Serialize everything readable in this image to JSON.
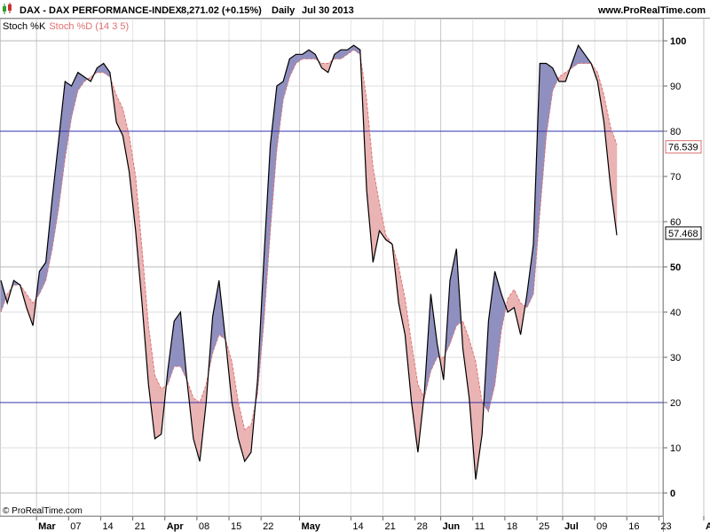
{
  "header": {
    "symbol": "DAX - DAX PERFORMANCE-INDEX",
    "price": "8,271.02 (+0.15%)",
    "period": "Daily",
    "date": "Jul 30 2013",
    "site": "www.ProRealTime.com"
  },
  "indicator": {
    "k_label": "Stoch %K",
    "d_label": "Stoch %D (14 3 5)",
    "k_color": "#000000",
    "d_color": "#e07070",
    "up_fill": "#9090c0",
    "down_fill": "#eab4b4"
  },
  "footer": {
    "copyright": "© ProRealTime.com"
  },
  "chart_data": {
    "type": "line",
    "yticks": [
      {
        "v": 0,
        "label": "0",
        "bold": true
      },
      {
        "v": 10,
        "label": "10",
        "bold": false
      },
      {
        "v": 20,
        "label": "20",
        "bold": false
      },
      {
        "v": 30,
        "label": "30",
        "bold": false
      },
      {
        "v": 40,
        "label": "40",
        "bold": false
      },
      {
        "v": 50,
        "label": "50",
        "bold": true
      },
      {
        "v": 60,
        "label": "60",
        "bold": false
      },
      {
        "v": 70,
        "label": "70",
        "bold": false
      },
      {
        "v": 80,
        "label": "80",
        "bold": false
      },
      {
        "v": 90,
        "label": "90",
        "bold": false
      },
      {
        "v": 100,
        "label": "100",
        "bold": true
      }
    ],
    "ylim": [
      0,
      100
    ],
    "levels": [
      20,
      80
    ],
    "level_color": "#3030b0",
    "last_k": "57.468",
    "last_d": "76.539",
    "x_labels": [
      {
        "i": 5,
        "label": "Mar",
        "month": true
      },
      {
        "i": 10,
        "label": "07",
        "month": false
      },
      {
        "i": 15,
        "label": "14",
        "month": false
      },
      {
        "i": 20,
        "label": "21",
        "month": false
      },
      {
        "i": 25,
        "label": "Apr",
        "month": true
      },
      {
        "i": 30,
        "label": "08",
        "month": false
      },
      {
        "i": 35,
        "label": "15",
        "month": false
      },
      {
        "i": 40,
        "label": "22",
        "month": false
      },
      {
        "i": 46,
        "label": "May",
        "month": true
      },
      {
        "i": 54,
        "label": "14",
        "month": false
      },
      {
        "i": 59,
        "label": "21",
        "month": false
      },
      {
        "i": 64,
        "label": "28",
        "month": false
      },
      {
        "i": 68,
        "label": "Jun",
        "month": true
      },
      {
        "i": 73,
        "label": "11",
        "month": false
      },
      {
        "i": 78,
        "label": "18",
        "month": false
      },
      {
        "i": 83,
        "label": "25",
        "month": false
      },
      {
        "i": 87,
        "label": "Jul",
        "month": true
      },
      {
        "i": 92,
        "label": "09",
        "month": false
      },
      {
        "i": 97,
        "label": "16",
        "month": false
      },
      {
        "i": 102,
        "label": "23",
        "month": false
      },
      {
        "i": 109,
        "label": "Aug",
        "month": true
      }
    ],
    "k": [
      47,
      42,
      47,
      46,
      41,
      37,
      49,
      51,
      65,
      78,
      91,
      90,
      93,
      92,
      91,
      94,
      95,
      93,
      82,
      79,
      71,
      58,
      42,
      24,
      12,
      13,
      27,
      38,
      40,
      25,
      12,
      7,
      20,
      39,
      47,
      34,
      20,
      12,
      7,
      9,
      25,
      52,
      77,
      90,
      91,
      96,
      97,
      97,
      98,
      97,
      94,
      93,
      97,
      98,
      98,
      99,
      98,
      67,
      51,
      58,
      56,
      55,
      42,
      35,
      20,
      9,
      22,
      44,
      33,
      25,
      47,
      54,
      32,
      21,
      3,
      13,
      38,
      49,
      44,
      40,
      41,
      35,
      44,
      55,
      95,
      95,
      94,
      91,
      91,
      95,
      99,
      97,
      95,
      91,
      82,
      68,
      57
    ],
    "d": [
      40,
      44,
      46,
      46,
      44,
      42,
      44,
      47,
      54,
      63,
      74,
      83,
      89,
      91,
      92,
      93,
      93,
      92,
      88,
      85,
      79,
      70,
      54,
      37,
      26,
      23,
      24,
      28,
      28,
      25,
      21,
      20,
      24,
      31,
      35,
      34,
      29,
      20,
      14,
      15,
      22,
      38,
      58,
      76,
      87,
      92,
      95,
      96,
      96,
      96,
      95,
      95,
      96,
      96,
      97,
      98,
      97,
      87,
      72,
      64,
      57,
      55,
      50,
      43,
      33,
      24,
      21,
      27,
      30,
      30,
      33,
      37,
      38,
      34,
      29,
      20,
      18,
      24,
      36,
      43,
      45,
      42,
      41,
      44,
      62,
      79,
      89,
      92,
      93,
      94,
      95,
      95,
      95,
      93,
      88,
      81,
      77
    ]
  }
}
